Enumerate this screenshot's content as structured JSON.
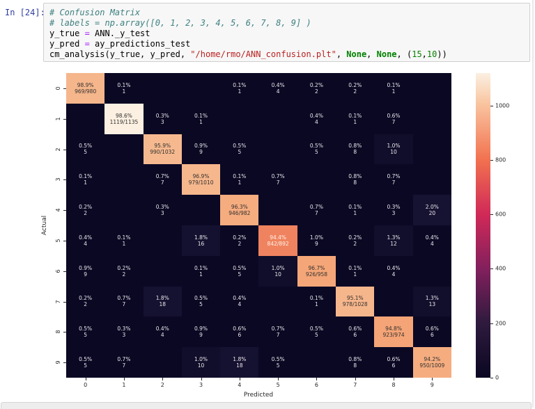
{
  "notebook": {
    "prompt": "In [24]:",
    "code_lines": [
      {
        "segments": [
          {
            "t": "# Confusion Matrix",
            "c": "comment"
          }
        ]
      },
      {
        "segments": [
          {
            "t": "# labels = np.array([0, 1, 2, 3, 4, 5, 6, 7, 8, 9] )",
            "c": "comment"
          }
        ]
      },
      {
        "segments": [
          {
            "t": "y_true ",
            "c": "plain"
          },
          {
            "t": "=",
            "c": "op"
          },
          {
            "t": " ANN._y_test",
            "c": "plain"
          }
        ]
      },
      {
        "segments": [
          {
            "t": "y_pred ",
            "c": "plain"
          },
          {
            "t": "=",
            "c": "op"
          },
          {
            "t": " ay_predictions_test",
            "c": "plain"
          }
        ]
      },
      {
        "segments": [
          {
            "t": "cm_analysis(y_true, y_pred, ",
            "c": "plain"
          },
          {
            "t": "\"/home/rmo/ANN_confusion.plt\"",
            "c": "string"
          },
          {
            "t": ", ",
            "c": "plain"
          },
          {
            "t": "None",
            "c": "keyword"
          },
          {
            "t": ", ",
            "c": "plain"
          },
          {
            "t": "None",
            "c": "keyword"
          },
          {
            "t": ", (",
            "c": "plain"
          },
          {
            "t": "15",
            "c": "number"
          },
          {
            "t": ",",
            "c": "plain"
          },
          {
            "t": "10",
            "c": "number"
          },
          {
            "t": "))",
            "c": "plain"
          }
        ]
      }
    ]
  },
  "chart_data": {
    "type": "heatmap",
    "title": "",
    "xlabel": "Predicted",
    "ylabel": "Actual",
    "x_ticks": [
      "0",
      "1",
      "2",
      "3",
      "4",
      "5",
      "6",
      "7",
      "8",
      "9"
    ],
    "y_ticks": [
      "0",
      "1",
      "2",
      "3",
      "4",
      "5",
      "6",
      "7",
      "8",
      "9"
    ],
    "vmin": 0,
    "vmax": 1119,
    "colorbar_ticks": [
      0,
      200,
      400,
      600,
      800,
      1000
    ],
    "colormap_stops": [
      {
        "v": 0,
        "color": "#0a0722"
      },
      {
        "v": 200,
        "color": "#2e1a3d"
      },
      {
        "v": 400,
        "color": "#82205d"
      },
      {
        "v": 600,
        "color": "#d02958"
      },
      {
        "v": 800,
        "color": "#f2714f"
      },
      {
        "v": 1000,
        "color": "#f9c29d"
      },
      {
        "v": 1119,
        "color": "#fbf0e2"
      }
    ],
    "cell_default_bg": "#0b0824",
    "cell_default_fg": "#e9e7ea",
    "rows": [
      {
        "label": "0",
        "cells": [
          {
            "pct": "98.9%",
            "count": "969/980",
            "bg": "#f5b68c",
            "fg": "#33302e"
          },
          {
            "pct": "0.1%",
            "count": "1"
          },
          null,
          null,
          {
            "pct": "0.1%",
            "count": "1"
          },
          {
            "pct": "0.4%",
            "count": "4"
          },
          {
            "pct": "0.2%",
            "count": "2"
          },
          {
            "pct": "0.2%",
            "count": "2"
          },
          {
            "pct": "0.1%",
            "count": "1"
          },
          null
        ]
      },
      {
        "label": "1",
        "cells": [
          null,
          {
            "pct": "98.6%",
            "count": "1119/1135",
            "bg": "#fbf0e2",
            "fg": "#33302e"
          },
          {
            "pct": "0.3%",
            "count": "3"
          },
          {
            "pct": "0.1%",
            "count": "1"
          },
          null,
          null,
          {
            "pct": "0.4%",
            "count": "4"
          },
          {
            "pct": "0.1%",
            "count": "1"
          },
          {
            "pct": "0.6%",
            "count": "7"
          },
          null
        ]
      },
      {
        "label": "2",
        "cells": [
          {
            "pct": "0.5%",
            "count": "5"
          },
          null,
          {
            "pct": "95.9%",
            "count": "990/1032",
            "bg": "#f6b98f",
            "fg": "#33302e"
          },
          {
            "pct": "0.9%",
            "count": "9"
          },
          {
            "pct": "0.5%",
            "count": "5"
          },
          null,
          {
            "pct": "0.5%",
            "count": "5"
          },
          {
            "pct": "0.8%",
            "count": "8"
          },
          {
            "pct": "1.0%",
            "count": "10",
            "bg": "#110e2b"
          },
          null
        ]
      },
      {
        "label": "3",
        "cells": [
          {
            "pct": "0.1%",
            "count": "1"
          },
          null,
          {
            "pct": "0.7%",
            "count": "7"
          },
          {
            "pct": "96.9%",
            "count": "979/1010",
            "bg": "#f6b78d",
            "fg": "#33302e"
          },
          {
            "pct": "0.1%",
            "count": "1"
          },
          {
            "pct": "0.7%",
            "count": "7"
          },
          null,
          {
            "pct": "0.8%",
            "count": "8"
          },
          {
            "pct": "0.7%",
            "count": "7"
          },
          null
        ]
      },
      {
        "label": "4",
        "cells": [
          {
            "pct": "0.2%",
            "count": "2"
          },
          null,
          {
            "pct": "0.3%",
            "count": "3"
          },
          null,
          {
            "pct": "96.3%",
            "count": "946/982",
            "bg": "#f5ac7f",
            "fg": "#33302e"
          },
          null,
          {
            "pct": "0.7%",
            "count": "7"
          },
          {
            "pct": "0.1%",
            "count": "1"
          },
          {
            "pct": "0.3%",
            "count": "3"
          },
          {
            "pct": "2.0%",
            "count": "20",
            "bg": "#161231"
          }
        ]
      },
      {
        "label": "5",
        "cells": [
          {
            "pct": "0.4%",
            "count": "4"
          },
          {
            "pct": "0.1%",
            "count": "1"
          },
          null,
          {
            "pct": "1.8%",
            "count": "16",
            "bg": "#141130"
          },
          {
            "pct": "0.2%",
            "count": "2"
          },
          {
            "pct": "94.4%",
            "count": "842/892",
            "bg": "#f0835f",
            "fg": "#fdf3ea"
          },
          {
            "pct": "1.0%",
            "count": "9"
          },
          {
            "pct": "0.2%",
            "count": "2"
          },
          {
            "pct": "1.3%",
            "count": "12",
            "bg": "#120f2c"
          },
          {
            "pct": "0.4%",
            "count": "4"
          }
        ]
      },
      {
        "label": "6",
        "cells": [
          {
            "pct": "0.9%",
            "count": "9"
          },
          {
            "pct": "0.2%",
            "count": "2"
          },
          null,
          {
            "pct": "0.1%",
            "count": "1"
          },
          {
            "pct": "0.5%",
            "count": "5"
          },
          {
            "pct": "1.0%",
            "count": "10",
            "bg": "#110e2b"
          },
          {
            "pct": "96.7%",
            "count": "926/958",
            "bg": "#f4a678",
            "fg": "#33302e"
          },
          {
            "pct": "0.1%",
            "count": "1"
          },
          {
            "pct": "0.4%",
            "count": "4"
          },
          null
        ]
      },
      {
        "label": "7",
        "cells": [
          {
            "pct": "0.2%",
            "count": "2"
          },
          {
            "pct": "0.7%",
            "count": "7"
          },
          {
            "pct": "1.8%",
            "count": "18",
            "bg": "#151130"
          },
          {
            "pct": "0.5%",
            "count": "5"
          },
          {
            "pct": "0.4%",
            "count": "4"
          },
          null,
          {
            "pct": "0.1%",
            "count": "1"
          },
          {
            "pct": "95.1%",
            "count": "978/1028",
            "bg": "#f6b68c",
            "fg": "#33302e"
          },
          null,
          {
            "pct": "1.3%",
            "count": "13",
            "bg": "#120f2c"
          }
        ]
      },
      {
        "label": "8",
        "cells": [
          {
            "pct": "0.5%",
            "count": "5"
          },
          {
            "pct": "0.3%",
            "count": "3"
          },
          {
            "pct": "0.4%",
            "count": "4"
          },
          {
            "pct": "0.9%",
            "count": "9"
          },
          {
            "pct": "0.6%",
            "count": "6"
          },
          {
            "pct": "0.7%",
            "count": "7"
          },
          {
            "pct": "0.5%",
            "count": "5"
          },
          {
            "pct": "0.6%",
            "count": "6"
          },
          {
            "pct": "94.8%",
            "count": "923/974",
            "bg": "#f4a477",
            "fg": "#33302e"
          },
          {
            "pct": "0.6%",
            "count": "6"
          }
        ]
      },
      {
        "label": "9",
        "cells": [
          {
            "pct": "0.5%",
            "count": "5"
          },
          {
            "pct": "0.7%",
            "count": "7"
          },
          null,
          {
            "pct": "1.0%",
            "count": "10",
            "bg": "#110e2b"
          },
          {
            "pct": "1.8%",
            "count": "18",
            "bg": "#151130"
          },
          {
            "pct": "0.5%",
            "count": "5"
          },
          null,
          {
            "pct": "0.8%",
            "count": "8"
          },
          {
            "pct": "0.6%",
            "count": "6"
          },
          {
            "pct": "94.2%",
            "count": "950/1009",
            "bg": "#f5ad80",
            "fg": "#33302e"
          }
        ]
      }
    ]
  }
}
